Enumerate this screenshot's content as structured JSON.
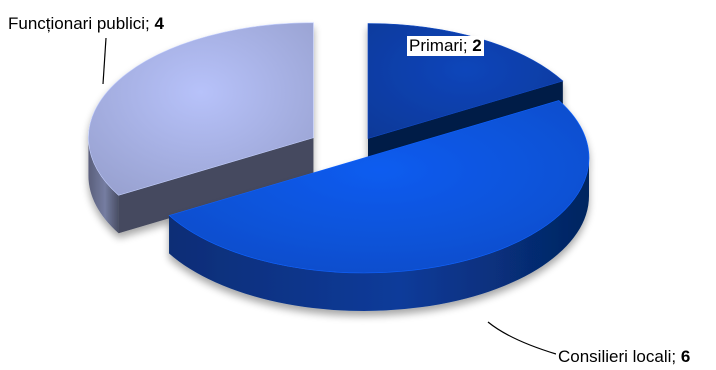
{
  "chart_data": {
    "type": "pie",
    "style": "3d-exploded",
    "slices": [
      {
        "label": "Primari",
        "value": 2,
        "color": "#0a3ea6"
      },
      {
        "label": "Consilieri locali",
        "value": 6,
        "color": "#0c52d6"
      },
      {
        "label": "Funcționari publici",
        "value": 4,
        "color": "#a3addf"
      }
    ],
    "separator": "; "
  }
}
